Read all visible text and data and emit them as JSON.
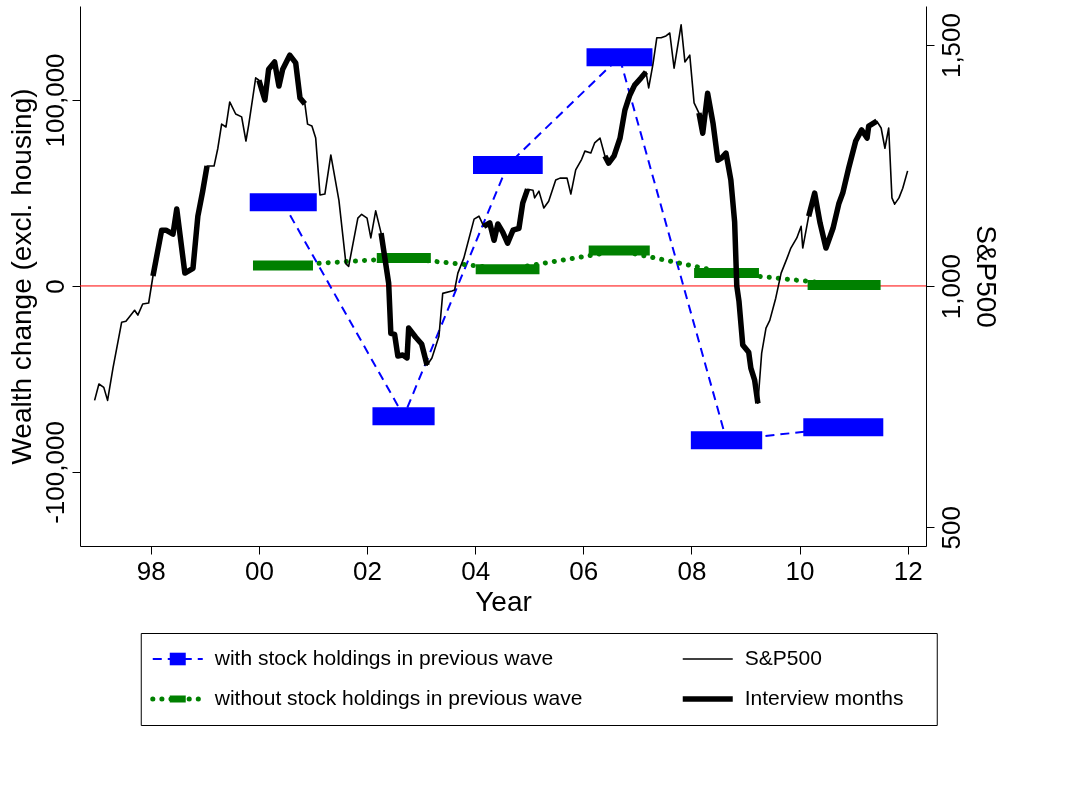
{
  "chart_data": {
    "type": "line",
    "xlabel": "Year",
    "ylabel": "Wealth change (excl. housing)",
    "y2label": "S&P500",
    "x": [
      2000.44,
      2002.68,
      2004.6,
      2006.67,
      2008.65,
      2010.82
    ],
    "xlim": [
      1996.69,
      2012.34
    ],
    "xticks": [
      {
        "value": 1998,
        "label": "98"
      },
      {
        "value": 2000,
        "label": "00"
      },
      {
        "value": 2002,
        "label": "02"
      },
      {
        "value": 2004,
        "label": "04"
      },
      {
        "value": 2006,
        "label": "06"
      },
      {
        "value": 2008,
        "label": "08"
      },
      {
        "value": 2010,
        "label": "10"
      },
      {
        "value": 2012,
        "label": "12"
      }
    ],
    "ylim": [
      -139800,
      150500
    ],
    "yticks": [
      {
        "value": -100000,
        "label": "-100,000"
      },
      0,
      {
        "value": 100000,
        "label": "100,000"
      }
    ],
    "y2lim": [
      461,
      1581
    ],
    "y2ticks": [
      500,
      {
        "value": 1000,
        "label": "1,000"
      },
      {
        "value": 1500,
        "label": "1,500"
      }
    ],
    "grid": false,
    "legend": "bottom",
    "ref_lines": [
      {
        "axis": "y",
        "value": 0,
        "color": "#ff0000"
      }
    ],
    "series": [
      {
        "name": "with stock holdings in previous wave",
        "color": "#0000ff",
        "line_style": "dashed",
        "values": [
          45000,
          -70000,
          65000,
          123000,
          -83000,
          -76000
        ],
        "xerrors": [
          [
            1999.83,
            2001.07
          ],
          [
            2002.1,
            2003.25
          ],
          [
            2003.96,
            2005.25
          ],
          [
            2006.06,
            2007.28
          ],
          [
            2007.99,
            2009.31
          ],
          [
            2010.07,
            2011.55
          ]
        ]
      },
      {
        "name": "without stock holdings in previous wave",
        "color": "#008000",
        "line_style": "dotted",
        "values": [
          11000,
          15000,
          9000,
          19000,
          7000,
          500
        ],
        "xerrors": [
          [
            1999.89,
            2001.0
          ],
          [
            2002.18,
            2003.18
          ],
          [
            2004.01,
            2005.19
          ],
          [
            2006.1,
            2007.23
          ],
          [
            2008.05,
            2009.25
          ],
          [
            2010.15,
            2011.5
          ]
        ]
      },
      {
        "name": "S&P500",
        "color": "#000000",
        "axis": "y2",
        "line_style": "solid",
        "marker": "none",
        "x": [
          1996.96,
          1997.04,
          1997.13,
          1997.2,
          1997.3,
          1997.46,
          1997.54,
          1997.7,
          1997.76,
          1997.85,
          1997.96,
          1998.04,
          1998.2,
          1998.28,
          1998.41,
          1998.48,
          1998.63,
          1998.78,
          1998.87,
          1998.96,
          1999.04,
          1999.17,
          1999.24,
          1999.31,
          1999.39,
          1999.46,
          1999.57,
          1999.68,
          1999.76,
          1999.81,
          1999.89,
          1999.94,
          2000.0,
          2000.11,
          2000.18,
          2000.29,
          2000.37,
          2000.44,
          2000.57,
          2000.68,
          2000.76,
          2000.85,
          2000.9,
          2000.98,
          2001.05,
          2001.13,
          2001.22,
          2001.33,
          2001.48,
          2001.61,
          2001.66,
          2001.83,
          2001.9,
          2002.0,
          2002.07,
          2002.16,
          2002.26,
          2002.4,
          2002.44,
          2002.51,
          2002.57,
          2002.66,
          2002.74,
          2002.77,
          2002.9,
          2003.01,
          2003.11,
          2003.2,
          2003.33,
          2003.4,
          2003.57,
          2003.62,
          2003.68,
          2003.79,
          2003.98,
          2004.07,
          2004.16,
          2004.27,
          2004.35,
          2004.42,
          2004.51,
          2004.6,
          2004.7,
          2004.81,
          2004.88,
          2004.97,
          2005.07,
          2005.1,
          2005.18,
          2005.27,
          2005.36,
          2005.49,
          2005.57,
          2005.7,
          2005.77,
          2005.86,
          2005.97,
          2006.03,
          2006.14,
          2006.21,
          2006.31,
          2006.4,
          2006.47,
          2006.57,
          2006.68,
          2006.77,
          2006.86,
          2006.95,
          2007.07,
          2007.16,
          2007.21,
          2007.29,
          2007.36,
          2007.44,
          2007.53,
          2007.6,
          2007.68,
          2007.81,
          2007.88,
          2007.97,
          2008.05,
          2008.14,
          2008.21,
          2008.3,
          2008.4,
          2008.49,
          2008.56,
          2008.64,
          2008.73,
          2008.8,
          2008.84,
          2008.88,
          2008.95,
          2009.06,
          2009.1,
          2009.17,
          2009.23,
          2009.3,
          2009.38,
          2009.45,
          2009.56,
          2009.66,
          2009.77,
          2009.84,
          2009.95,
          2010.03,
          2010.06,
          2010.17,
          2010.28,
          2010.38,
          2010.49,
          2010.62,
          2010.73,
          2010.8,
          2010.91,
          2011.04,
          2011.15,
          2011.25,
          2011.28,
          2011.43,
          2011.51,
          2011.58,
          2011.65,
          2011.71,
          2011.76,
          2011.84,
          2011.91,
          2012.0
        ],
        "values": [
          763,
          797,
          790,
          763,
          830,
          925,
          927,
          950,
          940,
          963,
          965,
          1021,
          1116,
          1116,
          1108,
          1160,
          1027,
          1037,
          1145,
          1197,
          1249,
          1249,
          1286,
          1336,
          1330,
          1382,
          1357,
          1351,
          1301,
          1334,
          1394,
          1432,
          1427,
          1386,
          1450,
          1465,
          1415,
          1450,
          1479,
          1463,
          1390,
          1378,
          1336,
          1332,
          1307,
          1189,
          1191,
          1272,
          1178,
          1046,
          1041,
          1141,
          1149,
          1141,
          1100,
          1156,
          1110,
          1006,
          902,
          900,
          855,
          857,
          851,
          913,
          894,
          880,
          836,
          851,
          896,
          985,
          990,
          992,
          1027,
          1058,
          1139,
          1145,
          1124,
          1131,
          1095,
          1129,
          1112,
          1089,
          1116,
          1120,
          1172,
          1201,
          1199,
          1183,
          1197,
          1162,
          1176,
          1220,
          1224,
          1224,
          1191,
          1241,
          1263,
          1280,
          1276,
          1297,
          1307,
          1270,
          1255,
          1270,
          1307,
          1365,
          1396,
          1417,
          1432,
          1444,
          1411,
          1461,
          1515,
          1515,
          1519,
          1525,
          1452,
          1542,
          1465,
          1479,
          1380,
          1359,
          1317,
          1400,
          1338,
          1261,
          1266,
          1276,
          1220,
          1133,
          1000,
          969,
          878,
          863,
          830,
          805,
          757,
          861,
          913,
          929,
          975,
          1027,
          1058,
          1079,
          1100,
          1124,
          1079,
          1145,
          1193,
          1131,
          1079,
          1120,
          1172,
          1193,
          1245,
          1301,
          1324,
          1307,
          1332,
          1342,
          1328,
          1286,
          1328,
          1183,
          1170,
          1183,
          1203,
          1239
        ]
      },
      {
        "name": "Interview months",
        "color": "#000000",
        "axis": "y2",
        "line_style": "solid",
        "marker": "none",
        "x": [
          1998.04,
          1998.2,
          1998.28,
          1998.41,
          1998.48,
          1998.63,
          1998.78,
          1998.87,
          1998.96,
          1999.04,
          1999.5,
          2000.0,
          2000.11,
          2000.18,
          2000.29,
          2000.37,
          2000.44,
          2000.57,
          2000.68,
          2000.76,
          2000.85,
          2001.5,
          2002.26,
          2002.4,
          2002.44,
          2002.51,
          2002.57,
          2002.66,
          2002.74,
          2002.77,
          2002.9,
          2003.01,
          2003.11,
          2003.6,
          2004.16,
          2004.27,
          2004.35,
          2004.42,
          2004.51,
          2004.6,
          2004.7,
          2004.81,
          2004.88,
          2004.97,
          2005.7,
          2006.4,
          2006.47,
          2006.57,
          2006.68,
          2006.77,
          2006.86,
          2006.95,
          2007.07,
          2007.16,
          2007.6,
          2008.14,
          2008.21,
          2008.3,
          2008.4,
          2008.49,
          2008.56,
          2008.64,
          2008.73,
          2008.8,
          2008.84,
          2008.88,
          2008.95,
          2009.06,
          2009.1,
          2009.17,
          2009.23,
          2009.7,
          2010.17,
          2010.28,
          2010.38,
          2010.49,
          2010.62,
          2010.73,
          2010.8,
          2010.91,
          2011.04,
          2011.15,
          2011.25,
          2011.28,
          2011.43
        ],
        "values": [
          1021,
          1116,
          1116,
          1108,
          1160,
          1027,
          1037,
          1145,
          1197,
          1249,
          null,
          1427,
          1386,
          1450,
          1465,
          1415,
          1450,
          1479,
          1463,
          1390,
          1378,
          null,
          1110,
          1006,
          902,
          900,
          855,
          857,
          851,
          913,
          894,
          880,
          836,
          null,
          1124,
          1131,
          1095,
          1129,
          1112,
          1089,
          1116,
          1120,
          1172,
          1201,
          null,
          1270,
          1255,
          1270,
          1307,
          1365,
          1396,
          1417,
          1432,
          1444,
          null,
          1359,
          1317,
          1400,
          1338,
          1261,
          1266,
          1276,
          1220,
          1133,
          1000,
          969,
          878,
          863,
          830,
          805,
          757,
          null,
          1145,
          1193,
          1131,
          1079,
          1120,
          1172,
          1193,
          1245,
          1301,
          1324,
          1307,
          1332,
          1342
        ]
      }
    ]
  }
}
